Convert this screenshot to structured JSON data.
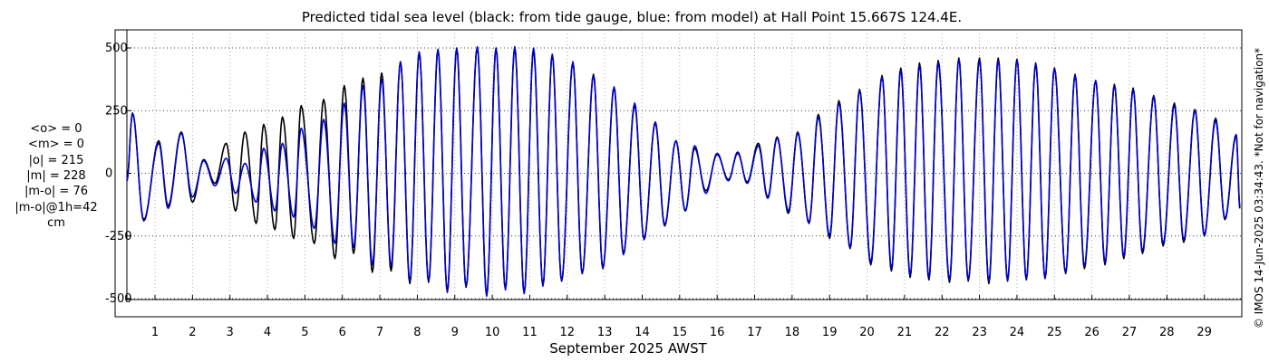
{
  "chart_data": {
    "type": "line",
    "title": "Predicted tidal sea level (black: from tide gauge, blue: from model) at Hall Point 15.667S 124.4E.",
    "xlabel": "September 2025 AWST",
    "ylabel": "",
    "x_unit": "day of September 2025",
    "xlim": [
      0.25,
      30.0
    ],
    "ylim": [
      -520,
      520
    ],
    "x_ticks": [
      1,
      2,
      3,
      4,
      5,
      6,
      7,
      8,
      9,
      10,
      11,
      12,
      13,
      14,
      15,
      16,
      17,
      18,
      19,
      20,
      21,
      22,
      23,
      24,
      25,
      26,
      27,
      28,
      29
    ],
    "x_tick_labels": [
      "1",
      "2",
      "3",
      "4",
      "5",
      "6",
      "7",
      "8",
      "9",
      "10",
      "11",
      "12",
      "13",
      "14",
      "15",
      "16",
      "17",
      "18",
      "19",
      "20",
      "21",
      "22",
      "23",
      "24",
      "25",
      "26",
      "27",
      "28",
      "29"
    ],
    "y_ticks": [
      -500,
      -250,
      0,
      250,
      500
    ],
    "y_tick_labels": [
      "-500",
      "-250",
      "0",
      "250",
      "500"
    ],
    "grid": true,
    "legend": "none",
    "stats_label_lines": [
      "<o> = 0",
      "<m> = 0",
      "|o| = 215",
      "|m| = 228",
      "|m-o| = 76",
      "|m-o|@1h=42",
      "cm"
    ],
    "credit": "© IMOS 14-Jun-2025 03:34:43. *Not for navigation*",
    "series": [
      {
        "color": "#000000",
        "high_water": [
          [
            0.4,
            240
          ],
          [
            1.1,
            130
          ],
          [
            1.7,
            165
          ],
          [
            2.3,
            55
          ],
          [
            2.9,
            120
          ],
          [
            3.4,
            165
          ],
          [
            3.9,
            195
          ],
          [
            4.4,
            225
          ],
          [
            4.9,
            270
          ],
          [
            5.5,
            295
          ],
          [
            6.05,
            350
          ],
          [
            6.55,
            380
          ],
          [
            7.05,
            400
          ],
          [
            7.55,
            445
          ],
          [
            8.05,
            480
          ],
          [
            8.55,
            490
          ],
          [
            9.05,
            495
          ],
          [
            9.6,
            500
          ],
          [
            10.1,
            495
          ],
          [
            10.6,
            500
          ],
          [
            11.1,
            490
          ],
          [
            11.6,
            470
          ],
          [
            12.15,
            440
          ],
          [
            12.7,
            395
          ],
          [
            13.25,
            340
          ],
          [
            13.8,
            270
          ],
          [
            14.35,
            200
          ],
          [
            14.9,
            130
          ],
          [
            15.4,
            100
          ],
          [
            16.0,
            75
          ],
          [
            16.55,
            80
          ],
          [
            17.1,
            120
          ],
          [
            17.6,
            145
          ],
          [
            18.15,
            165
          ],
          [
            18.7,
            235
          ],
          [
            19.25,
            290
          ],
          [
            19.8,
            335
          ],
          [
            20.4,
            390
          ],
          [
            20.9,
            420
          ],
          [
            21.4,
            440
          ],
          [
            21.9,
            450
          ],
          [
            22.45,
            460
          ],
          [
            23.0,
            460
          ],
          [
            23.5,
            460
          ],
          [
            24.0,
            455
          ],
          [
            24.5,
            440
          ],
          [
            25.0,
            420
          ],
          [
            25.55,
            395
          ],
          [
            26.1,
            370
          ],
          [
            26.6,
            355
          ],
          [
            27.1,
            340
          ],
          [
            27.65,
            310
          ],
          [
            28.2,
            280
          ],
          [
            28.75,
            255
          ],
          [
            29.3,
            220
          ],
          [
            29.85,
            150
          ]
        ],
        "low_water": [
          [
            0.7,
            -190
          ],
          [
            1.35,
            -130
          ],
          [
            2.0,
            -115
          ],
          [
            2.6,
            -40
          ],
          [
            3.15,
            -150
          ],
          [
            3.7,
            -200
          ],
          [
            4.2,
            -225
          ],
          [
            4.7,
            -260
          ],
          [
            5.25,
            -280
          ],
          [
            5.8,
            -340
          ],
          [
            6.3,
            -320
          ],
          [
            6.8,
            -395
          ],
          [
            7.3,
            -390
          ],
          [
            7.8,
            -440
          ],
          [
            8.3,
            -435
          ],
          [
            8.8,
            -475
          ],
          [
            9.3,
            -455
          ],
          [
            9.85,
            -485
          ],
          [
            10.35,
            -460
          ],
          [
            10.85,
            -475
          ],
          [
            11.35,
            -445
          ],
          [
            11.85,
            -430
          ],
          [
            12.4,
            -400
          ],
          [
            12.95,
            -380
          ],
          [
            13.5,
            -320
          ],
          [
            14.05,
            -260
          ],
          [
            14.6,
            -210
          ],
          [
            15.15,
            -150
          ],
          [
            15.7,
            -70
          ],
          [
            16.3,
            -25
          ],
          [
            16.8,
            -35
          ],
          [
            17.35,
            -95
          ],
          [
            17.9,
            -160
          ],
          [
            18.45,
            -200
          ],
          [
            19.0,
            -260
          ],
          [
            19.55,
            -300
          ],
          [
            20.1,
            -365
          ],
          [
            20.65,
            -390
          ],
          [
            21.15,
            -415
          ],
          [
            21.65,
            -425
          ],
          [
            22.2,
            -435
          ],
          [
            22.7,
            -430
          ],
          [
            23.25,
            -440
          ],
          [
            23.75,
            -430
          ],
          [
            24.25,
            -425
          ],
          [
            24.75,
            -420
          ],
          [
            25.3,
            -400
          ],
          [
            25.8,
            -380
          ],
          [
            26.35,
            -365
          ],
          [
            26.85,
            -340
          ],
          [
            27.35,
            -320
          ],
          [
            27.9,
            -290
          ],
          [
            28.45,
            -275
          ],
          [
            29.0,
            -250
          ],
          [
            29.55,
            -185
          ],
          [
            29.95,
            -140
          ]
        ]
      },
      {
        "color": "#0000cc",
        "high_water": [
          [
            0.4,
            240
          ],
          [
            1.1,
            120
          ],
          [
            1.7,
            160
          ],
          [
            2.3,
            50
          ],
          [
            2.9,
            60
          ],
          [
            3.4,
            40
          ],
          [
            3.9,
            100
          ],
          [
            4.4,
            120
          ],
          [
            4.9,
            180
          ],
          [
            5.5,
            215
          ],
          [
            6.05,
            280
          ],
          [
            6.55,
            350
          ],
          [
            7.05,
            375
          ],
          [
            7.55,
            445
          ],
          [
            8.05,
            485
          ],
          [
            8.55,
            495
          ],
          [
            9.05,
            500
          ],
          [
            9.6,
            505
          ],
          [
            10.1,
            500
          ],
          [
            10.6,
            505
          ],
          [
            11.1,
            500
          ],
          [
            11.6,
            475
          ],
          [
            12.15,
            445
          ],
          [
            12.7,
            390
          ],
          [
            13.25,
            345
          ],
          [
            13.8,
            280
          ],
          [
            14.35,
            205
          ],
          [
            14.9,
            130
          ],
          [
            15.4,
            110
          ],
          [
            16.0,
            80
          ],
          [
            16.55,
            85
          ],
          [
            17.1,
            110
          ],
          [
            17.6,
            140
          ],
          [
            18.15,
            160
          ],
          [
            18.7,
            225
          ],
          [
            19.25,
            280
          ],
          [
            19.8,
            330
          ],
          [
            20.4,
            385
          ],
          [
            20.9,
            410
          ],
          [
            21.4,
            430
          ],
          [
            21.9,
            440
          ],
          [
            22.45,
            455
          ],
          [
            23.0,
            450
          ],
          [
            23.5,
            450
          ],
          [
            24.0,
            455
          ],
          [
            24.5,
            435
          ],
          [
            25.0,
            420
          ],
          [
            25.55,
            390
          ],
          [
            26.1,
            370
          ],
          [
            26.6,
            350
          ],
          [
            27.1,
            335
          ],
          [
            27.65,
            305
          ],
          [
            28.2,
            270
          ],
          [
            28.75,
            250
          ],
          [
            29.3,
            210
          ],
          [
            29.85,
            155
          ]
        ],
        "low_water": [
          [
            0.7,
            -185
          ],
          [
            1.35,
            -140
          ],
          [
            2.0,
            -95
          ],
          [
            2.6,
            -50
          ],
          [
            3.15,
            -80
          ],
          [
            3.7,
            -115
          ],
          [
            4.2,
            -150
          ],
          [
            4.7,
            -175
          ],
          [
            5.25,
            -220
          ],
          [
            5.8,
            -280
          ],
          [
            6.3,
            -295
          ],
          [
            6.8,
            -365
          ],
          [
            7.3,
            -370
          ],
          [
            7.8,
            -430
          ],
          [
            8.3,
            -430
          ],
          [
            8.8,
            -470
          ],
          [
            9.3,
            -450
          ],
          [
            9.85,
            -490
          ],
          [
            10.35,
            -465
          ],
          [
            10.85,
            -480
          ],
          [
            11.35,
            -450
          ],
          [
            11.85,
            -430
          ],
          [
            12.4,
            -400
          ],
          [
            12.95,
            -375
          ],
          [
            13.5,
            -325
          ],
          [
            14.05,
            -265
          ],
          [
            14.6,
            -205
          ],
          [
            15.15,
            -150
          ],
          [
            15.7,
            -80
          ],
          [
            16.3,
            -30
          ],
          [
            16.8,
            -40
          ],
          [
            17.35,
            -100
          ],
          [
            17.9,
            -150
          ],
          [
            18.45,
            -195
          ],
          [
            19.0,
            -250
          ],
          [
            19.55,
            -295
          ],
          [
            20.1,
            -355
          ],
          [
            20.65,
            -380
          ],
          [
            21.15,
            -405
          ],
          [
            21.65,
            -415
          ],
          [
            22.2,
            -425
          ],
          [
            22.7,
            -425
          ],
          [
            23.25,
            -430
          ],
          [
            23.75,
            -425
          ],
          [
            24.25,
            -420
          ],
          [
            24.75,
            -415
          ],
          [
            25.3,
            -395
          ],
          [
            25.8,
            -370
          ],
          [
            26.35,
            -355
          ],
          [
            26.85,
            -330
          ],
          [
            27.35,
            -310
          ],
          [
            27.9,
            -280
          ],
          [
            28.45,
            -265
          ],
          [
            29.0,
            -245
          ],
          [
            29.55,
            -180
          ],
          [
            29.95,
            -130
          ]
        ]
      }
    ]
  }
}
